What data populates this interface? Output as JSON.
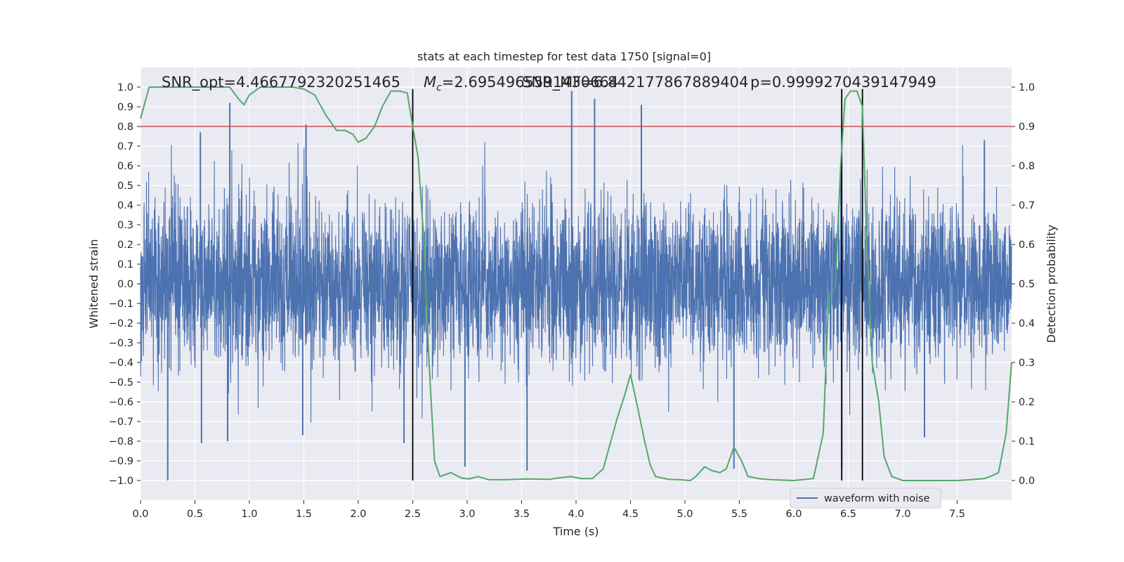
{
  "chart_data": {
    "type": "line",
    "title": "stats at each timestep for test data 1750 [signal=0]",
    "xlabel": "Time (s)",
    "ylabel_left": "Whitened strain",
    "ylabel_right": "Detection probability",
    "xlim": [
      0,
      8.0
    ],
    "ylim_left": [
      -1.1,
      1.1
    ],
    "ylim_right": [
      -0.05,
      1.05
    ],
    "x_ticks": [
      0.0,
      0.5,
      1.0,
      1.5,
      2.0,
      2.5,
      3.0,
      3.5,
      4.0,
      4.5,
      5.0,
      5.5,
      6.0,
      6.5,
      7.0,
      7.5
    ],
    "x_tick_labels": [
      "0.0",
      "0.5",
      "1.0",
      "1.5",
      "2.0",
      "2.5",
      "3.0",
      "3.5",
      "4.0",
      "4.5",
      "5.0",
      "5.5",
      "6.0",
      "6.5",
      "7.0",
      "7.5"
    ],
    "y_ticks_left": [
      1.0,
      0.9,
      0.8,
      0.7,
      0.6,
      0.5,
      0.4,
      0.3,
      0.2,
      0.1,
      0.0,
      -0.1,
      -0.2,
      -0.3,
      -0.4,
      -0.5,
      -0.6,
      -0.7,
      -0.8,
      -0.9,
      -1.0
    ],
    "y_tick_labels_left": [
      "1.0",
      "0.9",
      "0.8",
      "0.7",
      "0.6",
      "0.5",
      "0.4",
      "0.3",
      "0.2",
      "0.1",
      "0.0",
      "−0.1",
      "−0.2",
      "−0.3",
      "−0.4",
      "−0.5",
      "−0.6",
      "−0.7",
      "−0.8",
      "−0.9",
      "−1.0"
    ],
    "y_ticks_right": [
      1.0,
      0.9,
      0.8,
      0.7,
      0.6,
      0.5,
      0.4,
      0.3,
      0.2,
      0.1,
      0.0
    ],
    "y_tick_labels_right": [
      "1.0",
      "0.9",
      "0.8",
      "0.7",
      "0.6",
      "0.5",
      "0.4",
      "0.3",
      "0.2",
      "0.1",
      "0.0"
    ],
    "grid": true,
    "annotations": {
      "snr_opt": "SNR_opt=4.4667792320251465",
      "mc": "=2.6954965591430664",
      "mc_symbol": "M",
      "mc_sub": "c",
      "snr_mf": "SNR_MF=6.842177867889404",
      "p": "p=0.9999270439147949"
    },
    "threshold": {
      "axis": "right",
      "value": 0.9,
      "color": "#c44e52"
    },
    "vertical_lines": [
      2.5,
      6.44,
      6.63
    ],
    "waveform": {
      "name": "waveform with noise",
      "color": "#4c72b0",
      "axis": "left",
      "typical_amplitude": 0.3,
      "extremes": [
        {
          "x": 0.25,
          "y": -1.0
        },
        {
          "x": 0.55,
          "y": 0.77
        },
        {
          "x": 0.56,
          "y": -0.81
        },
        {
          "x": 0.82,
          "y": 0.92
        },
        {
          "x": 0.8,
          "y": -0.8
        },
        {
          "x": 1.52,
          "y": 0.81
        },
        {
          "x": 1.49,
          "y": -0.77
        },
        {
          "x": 2.42,
          "y": -0.81
        },
        {
          "x": 2.98,
          "y": -0.93
        },
        {
          "x": 3.55,
          "y": -0.95
        },
        {
          "x": 3.96,
          "y": 0.98
        },
        {
          "x": 4.17,
          "y": 0.94
        },
        {
          "x": 4.6,
          "y": 0.91
        },
        {
          "x": 5.45,
          "y": -0.94
        },
        {
          "x": 6.44,
          "y": -0.93
        },
        {
          "x": 7.2,
          "y": -0.78
        },
        {
          "x": 7.75,
          "y": 0.73
        }
      ]
    },
    "detection_probability": {
      "color": "#55a868",
      "axis": "right",
      "x": [
        0.0,
        0.08,
        0.2,
        0.4,
        0.6,
        0.82,
        0.9,
        0.95,
        1.0,
        1.1,
        1.2,
        1.4,
        1.5,
        1.6,
        1.7,
        1.8,
        1.88,
        1.95,
        2.0,
        2.07,
        2.15,
        2.22,
        2.3,
        2.38,
        2.45,
        2.5,
        2.55,
        2.6,
        2.65,
        2.7,
        2.75,
        2.85,
        2.95,
        3.02,
        3.1,
        3.2,
        3.35,
        3.55,
        3.75,
        3.85,
        3.95,
        4.05,
        4.15,
        4.25,
        4.3,
        4.38,
        4.45,
        4.5,
        4.57,
        4.63,
        4.68,
        4.73,
        4.85,
        4.95,
        5.05,
        5.1,
        5.18,
        5.25,
        5.32,
        5.38,
        5.45,
        5.52,
        5.58,
        5.7,
        5.8,
        6.0,
        6.18,
        6.27,
        6.32,
        6.38,
        6.43,
        6.47,
        6.52,
        6.58,
        6.63,
        6.67,
        6.72,
        6.78,
        6.83,
        6.9,
        7.0,
        7.2,
        7.5,
        7.62,
        7.75,
        7.8,
        7.88,
        7.95,
        8.0
      ],
      "y": [
        0.92,
        1.0,
        1.0,
        1.0,
        1.0,
        1.0,
        0.97,
        0.955,
        0.98,
        1.0,
        1.0,
        1.0,
        0.995,
        0.98,
        0.93,
        0.89,
        0.89,
        0.88,
        0.86,
        0.87,
        0.9,
        0.95,
        0.99,
        0.99,
        0.985,
        0.9,
        0.82,
        0.62,
        0.3,
        0.05,
        0.01,
        0.02,
        0.006,
        0.004,
        0.01,
        0.002,
        0.002,
        0.004,
        0.003,
        0.007,
        0.01,
        0.005,
        0.005,
        0.03,
        0.08,
        0.16,
        0.22,
        0.27,
        0.18,
        0.1,
        0.04,
        0.01,
        0.003,
        0.002,
        0.0,
        0.01,
        0.035,
        0.025,
        0.02,
        0.03,
        0.085,
        0.05,
        0.01,
        0.004,
        0.002,
        0.0,
        0.005,
        0.12,
        0.47,
        0.49,
        0.8,
        0.97,
        0.99,
        0.99,
        0.95,
        0.6,
        0.3,
        0.2,
        0.06,
        0.01,
        0.0,
        0.0,
        0.0,
        0.002,
        0.005,
        0.01,
        0.02,
        0.12,
        0.3
      ]
    },
    "legend": {
      "placement": "bottom-right",
      "entries": [
        "waveform with noise"
      ]
    }
  }
}
